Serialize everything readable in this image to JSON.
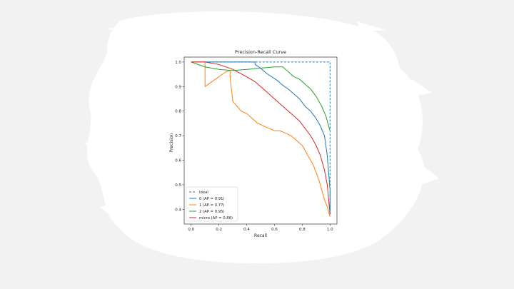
{
  "chart_data": {
    "type": "line",
    "title": "Precision-Recall Curve",
    "xlabel": "Recall",
    "ylabel": "Precision",
    "xlim": [
      -0.05,
      1.05
    ],
    "ylim": [
      0.34,
      1.02
    ],
    "xticks": [
      "0.0",
      "0.2",
      "0.4",
      "0.6",
      "0.8",
      "1.0"
    ],
    "yticks": [
      "0.4",
      "0.5",
      "0.6",
      "0.7",
      "0.8",
      "0.9",
      "1.0"
    ],
    "grid": false,
    "legend": "lower-left",
    "series": [
      {
        "name": "Ideal",
        "color": "#1f77b4",
        "dashed": true,
        "x": [
          0.0,
          1.0,
          1.0
        ],
        "y": [
          1.0,
          1.0,
          0.38
        ]
      },
      {
        "name": "0 (AP = 0.91)",
        "color": "#1f77b4",
        "x": [
          0.0,
          0.46,
          0.46,
          0.5,
          0.54,
          0.58,
          0.62,
          0.66,
          0.7,
          0.74,
          0.78,
          0.82,
          0.86,
          0.9,
          0.93,
          0.96,
          0.98,
          1.0,
          1.0
        ],
        "y": [
          1.0,
          1.0,
          0.99,
          0.975,
          0.955,
          0.94,
          0.925,
          0.905,
          0.89,
          0.87,
          0.85,
          0.82,
          0.8,
          0.77,
          0.74,
          0.7,
          0.62,
          0.48,
          0.38
        ]
      },
      {
        "name": "1 (AP = 0.77)",
        "color": "#ff7f0e",
        "x": [
          0.0,
          0.1,
          0.1,
          0.15,
          0.2,
          0.25,
          0.28,
          0.28,
          0.3,
          0.33,
          0.36,
          0.4,
          0.44,
          0.48,
          0.52,
          0.56,
          0.6,
          0.64,
          0.68,
          0.72,
          0.76,
          0.8,
          0.84,
          0.88,
          0.9,
          0.92,
          0.94,
          0.96,
          0.98,
          1.0
        ],
        "y": [
          1.0,
          1.0,
          0.9,
          0.92,
          0.94,
          0.96,
          0.965,
          0.94,
          0.84,
          0.82,
          0.8,
          0.79,
          0.77,
          0.75,
          0.74,
          0.73,
          0.72,
          0.72,
          0.71,
          0.7,
          0.68,
          0.66,
          0.62,
          0.58,
          0.55,
          0.52,
          0.48,
          0.44,
          0.41,
          0.37
        ]
      },
      {
        "name": "2 (AP = 0.95)",
        "color": "#2ca02c",
        "x": [
          0.0,
          0.1,
          0.2,
          0.3,
          0.4,
          0.5,
          0.6,
          0.66,
          0.7,
          0.74,
          0.78,
          0.82,
          0.86,
          0.9,
          0.94,
          0.97,
          1.0
        ],
        "y": [
          1.0,
          0.98,
          0.97,
          0.965,
          0.97,
          0.975,
          0.98,
          0.98,
          0.96,
          0.94,
          0.93,
          0.91,
          0.89,
          0.86,
          0.82,
          0.78,
          0.72
        ]
      },
      {
        "name": "micro (AP = 0.88)",
        "color": "#d62728",
        "x": [
          0.0,
          0.1,
          0.2,
          0.3,
          0.4,
          0.46,
          0.5,
          0.54,
          0.58,
          0.62,
          0.66,
          0.7,
          0.74,
          0.78,
          0.82,
          0.86,
          0.9,
          0.93,
          0.96,
          0.98,
          1.0
        ],
        "y": [
          1.0,
          1.0,
          0.99,
          0.97,
          0.94,
          0.92,
          0.9,
          0.88,
          0.86,
          0.84,
          0.82,
          0.8,
          0.78,
          0.76,
          0.73,
          0.7,
          0.66,
          0.62,
          0.56,
          0.5,
          0.38
        ]
      }
    ]
  }
}
